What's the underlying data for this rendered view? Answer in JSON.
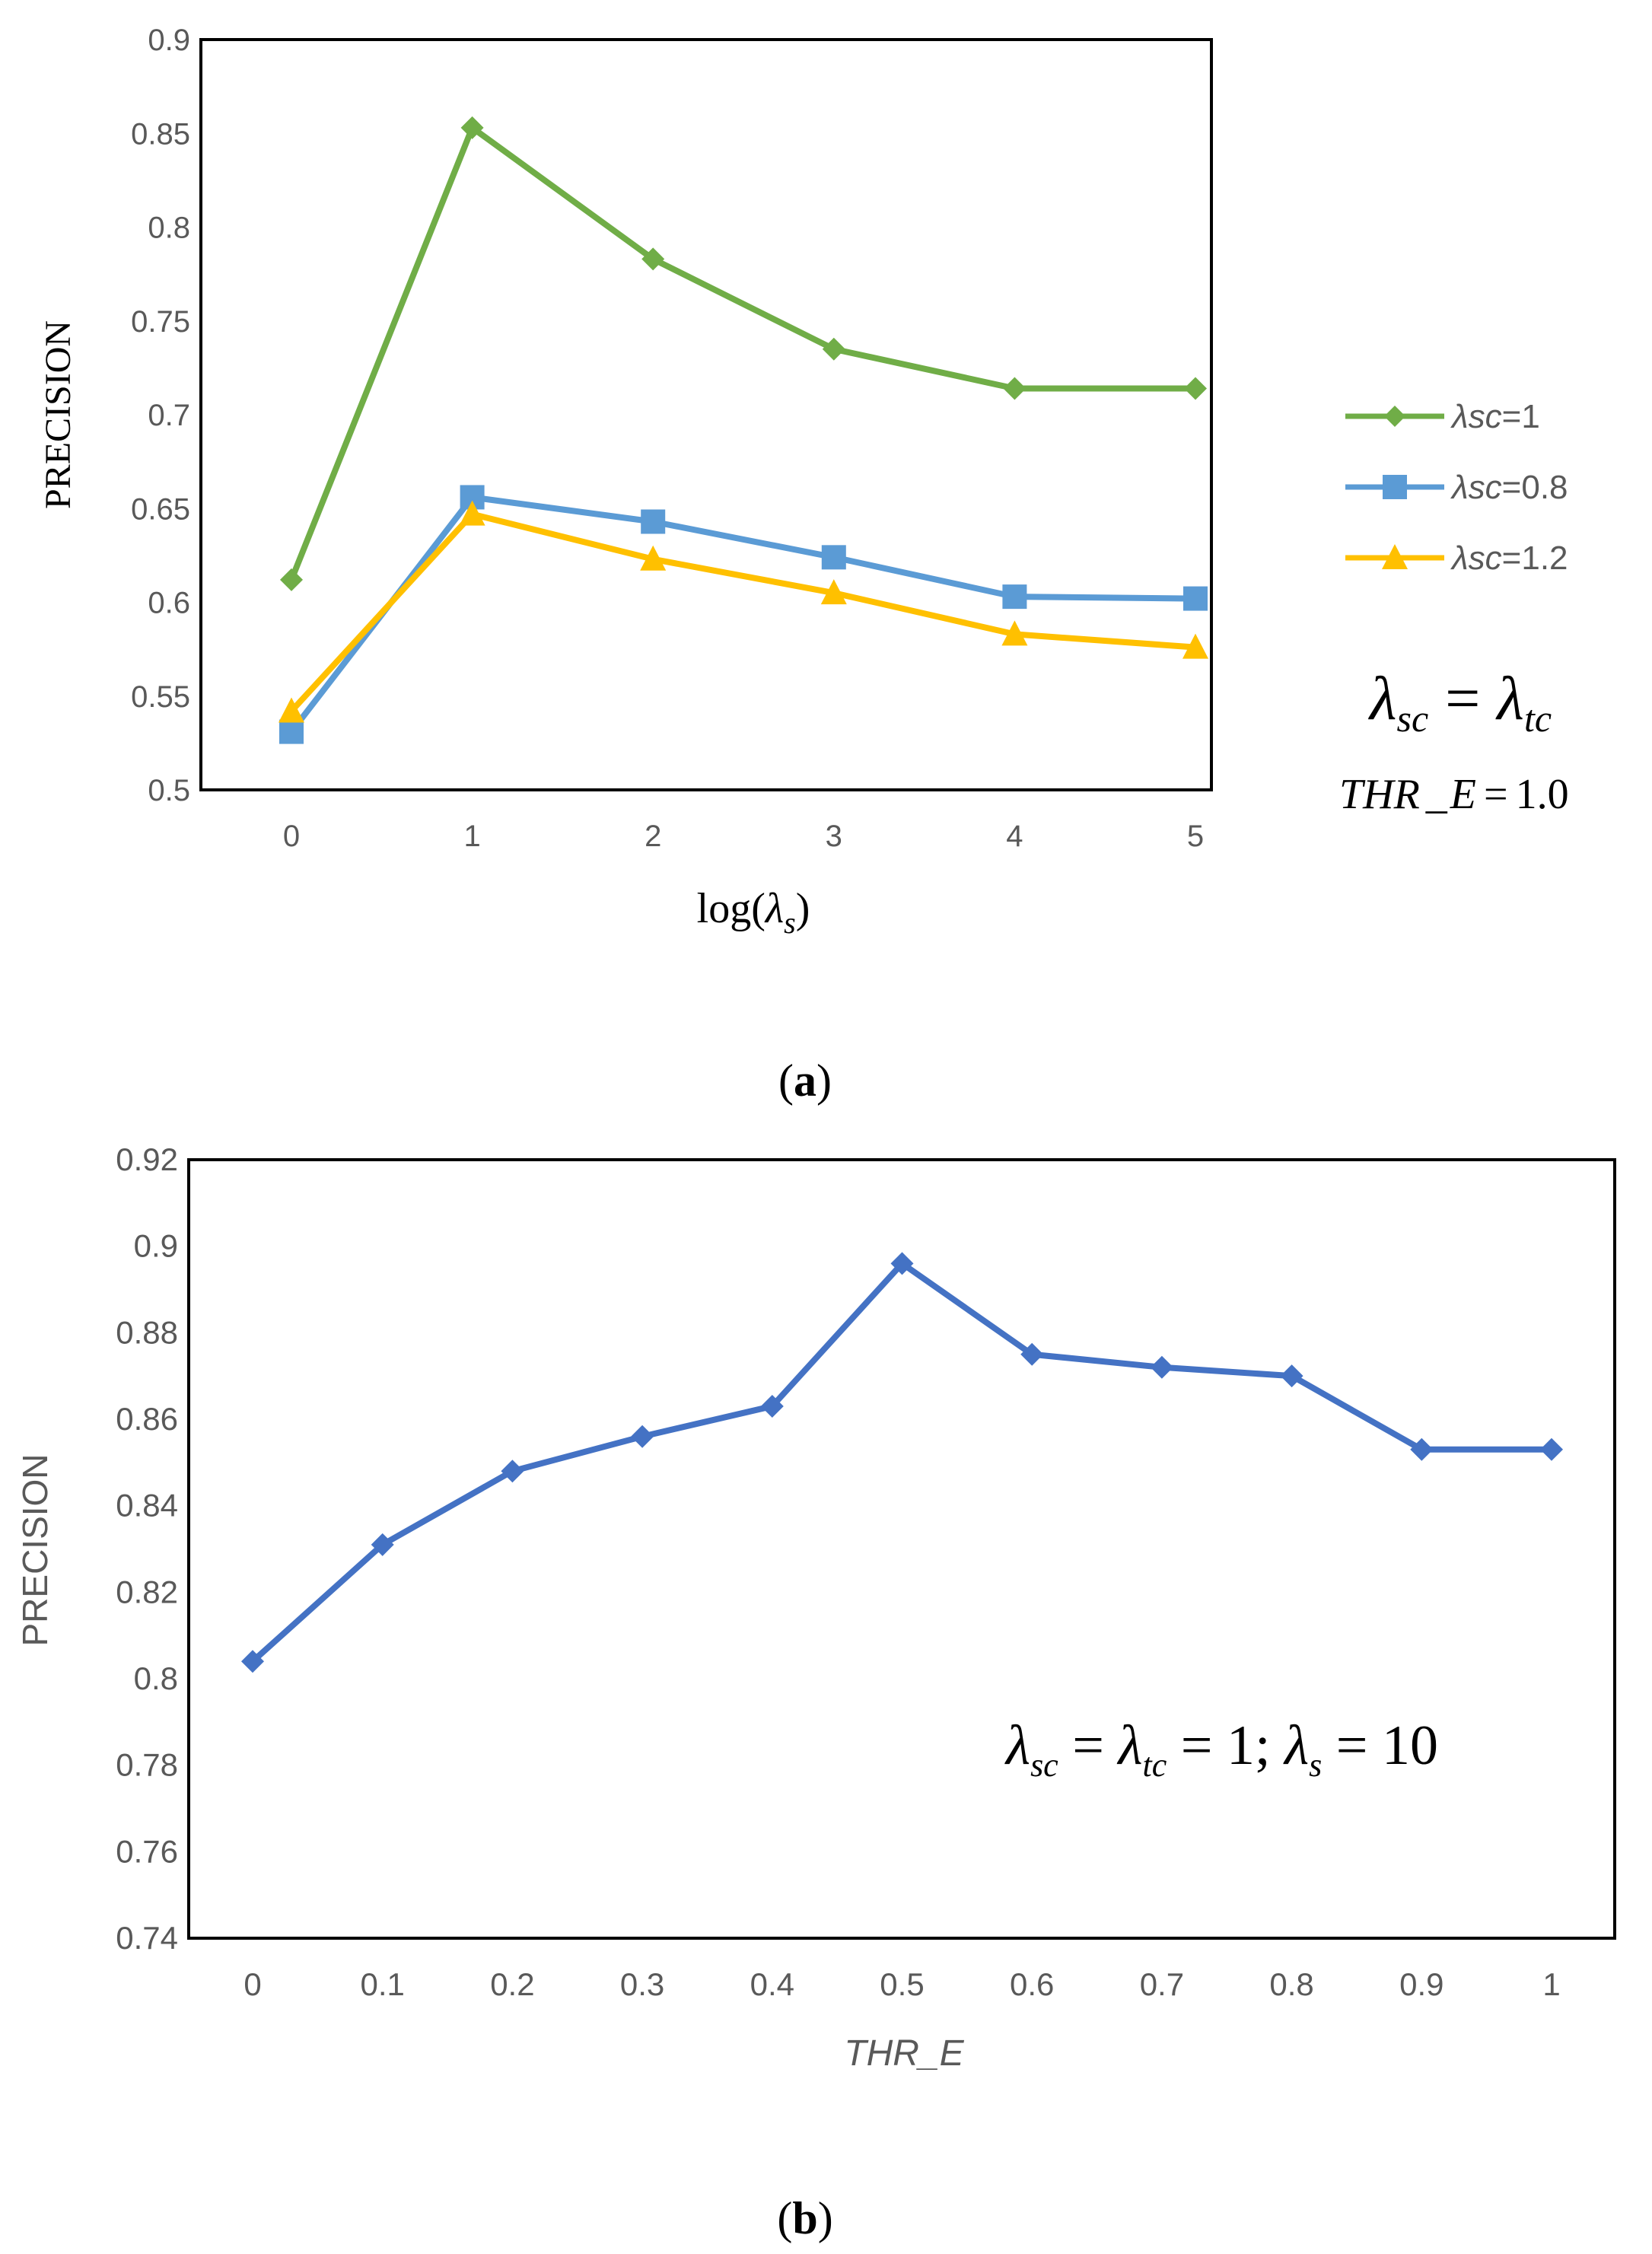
{
  "chart_data": [
    {
      "type": "line",
      "panel_label": "(a)",
      "panel_letter": "a",
      "xlabel_prefix": "log(",
      "xlabel_var": "λ",
      "xlabel_sub": "s",
      "xlabel_suffix": ")",
      "ylabel": "PRECISION",
      "ylim": [
        0.5,
        0.9
      ],
      "yticks": [
        "0.5",
        "0.55",
        "0.6",
        "0.65",
        "0.7",
        "0.75",
        "0.8",
        "0.85",
        "0.9"
      ],
      "categories": [
        "0",
        "1",
        "2",
        "3",
        "4",
        "5"
      ],
      "series": [
        {
          "name": "λsc=1",
          "legend_var": "λsc",
          "legend_val": "=1",
          "color": "#70AD47",
          "marker": "diamond",
          "values": [
            0.612,
            0.853,
            0.783,
            0.735,
            0.714,
            0.714
          ]
        },
        {
          "name": "λsc=0.8",
          "legend_var": "λsc",
          "legend_val": "=0.8",
          "color": "#5B9BD5",
          "marker": "square",
          "values": [
            0.531,
            0.656,
            0.643,
            0.624,
            0.603,
            0.602
          ]
        },
        {
          "name": "λsc=1.2",
          "legend_var": "λsc",
          "legend_val": "=1.2",
          "color": "#FFC000",
          "marker": "triangle",
          "values": [
            0.542,
            0.647,
            0.623,
            0.605,
            0.583,
            0.576
          ]
        }
      ],
      "annotation_eq": {
        "lhs": "λ",
        "lhs_sub": "sc",
        "op": "=",
        "rhs": "λ",
        "rhs_sub": "tc"
      },
      "annotation_thr": {
        "name": "THR",
        "sep": "_",
        "var": "E",
        "op": "=",
        "value": "1.0"
      }
    },
    {
      "type": "line",
      "panel_label": "(b)",
      "panel_letter": "b",
      "xlabel": "THR_E",
      "ylabel": "PRECISION",
      "ylim": [
        0.74,
        0.92
      ],
      "yticks": [
        "0.74",
        "0.76",
        "0.78",
        "0.8",
        "0.82",
        "0.84",
        "0.86",
        "0.88",
        "0.9",
        "0.92"
      ],
      "categories": [
        "0",
        "0.1",
        "0.2",
        "0.3",
        "0.4",
        "0.5",
        "0.6",
        "0.7",
        "0.8",
        "0.9",
        "1"
      ],
      "series": [
        {
          "name": "precision",
          "color": "#4472C4",
          "marker": "diamond",
          "values": [
            0.804,
            0.831,
            0.848,
            0.856,
            0.863,
            0.896,
            0.875,
            0.872,
            0.87,
            0.853,
            0.853
          ]
        }
      ],
      "annotation": {
        "p1": "λ",
        "s1": "sc",
        "p2": " = ",
        "p3": "λ",
        "s3": "tc",
        "p4": " = 1; ",
        "p5": "λ",
        "s5": "s",
        "p6": " = 10"
      }
    }
  ]
}
